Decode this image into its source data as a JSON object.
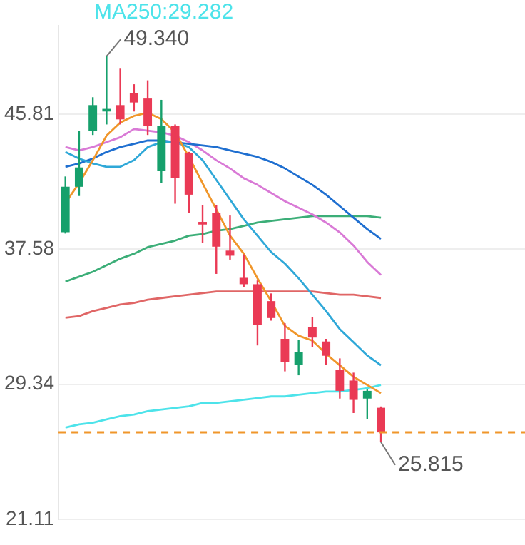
{
  "chart_data": {
    "type": "candlestick",
    "categories": [
      null,
      null,
      null,
      null,
      null,
      null,
      null,
      null,
      null,
      null,
      null,
      null,
      null,
      null,
      null,
      null,
      null,
      null,
      null,
      null,
      null,
      null,
      null,
      null,
      null,
      null,
      null,
      null,
      null,
      null,
      null,
      null,
      null,
      null
    ],
    "ohlc": [
      [
        38.61,
        42.01,
        38.53,
        41.38
      ],
      [
        41.38,
        44.78,
        40.82,
        42.56
      ],
      [
        44.78,
        46.84,
        44.54,
        46.36
      ],
      [
        45.97,
        49.34,
        45.18,
        46.13
      ],
      [
        46.36,
        48.58,
        45.18,
        45.49
      ],
      [
        47.08,
        47.63,
        45.97,
        46.52
      ],
      [
        46.76,
        47.87,
        44.54,
        45.1
      ],
      [
        42.33,
        46.68,
        41.61,
        45.1
      ],
      [
        45.1,
        45.18,
        40.35,
        41.93
      ],
      [
        43.43,
        43.51,
        39.79,
        40.9
      ],
      [
        39.24,
        40.27,
        37.97,
        39.08
      ],
      [
        39.79,
        40.27,
        36.07,
        37.73
      ],
      [
        37.49,
        39.63,
        36.94,
        37.18
      ],
      [
        35.83,
        37.26,
        35.28,
        35.44
      ],
      [
        35.44,
        35.67,
        31.71,
        32.98
      ],
      [
        34.41,
        34.88,
        33.22,
        33.38
      ],
      [
        32.11,
        33.06,
        30.13,
        30.68
      ],
      [
        30.52,
        32.03,
        29.89,
        31.32
      ],
      [
        32.82,
        33.45,
        31.63,
        32.19
      ],
      [
        31.95,
        32.11,
        30.52,
        31.08
      ],
      [
        30.21,
        30.92,
        28.47,
        28.94
      ],
      [
        29.57,
        30.05,
        27.59,
        28.39
      ],
      [
        28.47,
        29.02,
        27.2,
        28.94
      ],
      [
        27.91,
        27.99,
        25.815,
        26.41
      ],
      null,
      null,
      null,
      null,
      null,
      null,
      null,
      null,
      null,
      null
    ],
    "colors": [
      "#16a06c",
      "#16a06c",
      "#16a06c",
      "#16a06c",
      "#ea3a55",
      "#ea3a55",
      "#ea3a55",
      "#16a06c",
      "#ea3a55",
      "#ea3a55",
      "#ea3a55",
      "#ea3a55",
      "#ea3a55",
      "#ea3a55",
      "#ea3a55",
      "#ea3a55",
      "#ea3a55",
      "#16a06c",
      "#ea3a55",
      "#ea3a55",
      "#ea3a55",
      "#ea3a55",
      "#16a06c",
      "#ea3a55",
      null,
      null,
      null,
      null,
      null,
      null,
      null,
      null,
      null,
      null
    ],
    "series": [
      {
        "type": "line",
        "color": "#f0962a",
        "values": [
          40.4,
          41.6,
          43.0,
          44.5,
          45.3,
          45.7,
          45.9,
          45.5,
          44.7,
          43.2,
          41.6,
          40.0,
          38.4,
          37.3,
          35.8,
          34.4,
          32.9,
          32.3,
          32.0,
          31.2,
          30.5,
          29.8,
          29.3,
          28.8,
          null,
          null,
          null,
          null,
          null,
          null,
          null,
          null,
          null,
          null
        ]
      },
      {
        "type": "line",
        "color": "#2fa8d8",
        "values": [
          43.5,
          43.1,
          42.8,
          42.6,
          42.6,
          43.0,
          43.8,
          44.1,
          44.1,
          43.8,
          43.0,
          41.8,
          40.6,
          39.4,
          38.4,
          37.4,
          36.7,
          35.8,
          34.8,
          33.8,
          32.7,
          31.9,
          31.1,
          30.5,
          null,
          null,
          null,
          null,
          null,
          null,
          null,
          null,
          null,
          null
        ]
      },
      {
        "type": "line",
        "color": "#1f6fd0",
        "values": [
          42.6,
          42.8,
          43.1,
          43.5,
          43.8,
          44.0,
          44.2,
          44.2,
          44.1,
          44.0,
          43.9,
          43.8,
          43.6,
          43.4,
          43.2,
          42.9,
          42.5,
          42.0,
          41.5,
          40.9,
          40.2,
          39.5,
          38.8,
          38.2,
          null,
          null,
          null,
          null,
          null,
          null,
          null,
          null,
          null,
          null
        ]
      },
      {
        "type": "line",
        "color": "#d97ad6",
        "values": [
          43.8,
          43.6,
          43.8,
          44.1,
          44.4,
          44.9,
          44.8,
          44.7,
          44.5,
          44.1,
          43.6,
          43.0,
          42.5,
          41.9,
          41.5,
          41.0,
          40.5,
          40.1,
          39.7,
          39.2,
          38.6,
          37.8,
          36.8,
          36.0,
          null,
          null,
          null,
          null,
          null,
          null,
          null,
          null,
          null,
          null
        ]
      },
      {
        "type": "line",
        "color": "#3cae78",
        "values": [
          35.6,
          35.9,
          36.2,
          36.6,
          37.0,
          37.3,
          37.7,
          37.9,
          38.1,
          38.4,
          38.5,
          38.7,
          38.8,
          39.0,
          39.2,
          39.3,
          39.4,
          39.5,
          39.6,
          39.6,
          39.6,
          39.6,
          39.6,
          39.5,
          null,
          null,
          null,
          null,
          null,
          null,
          null,
          null,
          null,
          null
        ]
      },
      {
        "type": "line",
        "color": "#e06666",
        "values": [
          33.4,
          33.5,
          33.8,
          34.0,
          34.2,
          34.3,
          34.5,
          34.6,
          34.7,
          34.8,
          34.9,
          35.0,
          35.0,
          35.0,
          35.0,
          35.0,
          35.0,
          35.0,
          35.0,
          34.9,
          34.8,
          34.8,
          34.7,
          34.6,
          null,
          null,
          null,
          null,
          null,
          null,
          null,
          null,
          null,
          null
        ]
      },
      {
        "type": "line",
        "name": "MA250:29.282",
        "color": "#4de3ea",
        "values": [
          26.7,
          26.9,
          27.0,
          27.2,
          27.4,
          27.5,
          27.7,
          27.8,
          27.9,
          28.0,
          28.2,
          28.2,
          28.3,
          28.4,
          28.5,
          28.6,
          28.6,
          28.7,
          28.8,
          28.9,
          28.9,
          29.0,
          29.1,
          29.3,
          null,
          null,
          null,
          null,
          null,
          null,
          null,
          null,
          null,
          null
        ]
      }
    ],
    "ylim": [
      21.11,
      51.2
    ],
    "yticks": [
      21.11,
      29.34,
      37.58,
      45.81
    ],
    "grid": "y",
    "legend": "top left",
    "ref_lines": [
      {
        "axis": "y",
        "value": 26.41,
        "color": "#f0962a",
        "line_style": "dashed"
      }
    ],
    "annotations": [
      "49.340",
      "25.815"
    ]
  }
}
